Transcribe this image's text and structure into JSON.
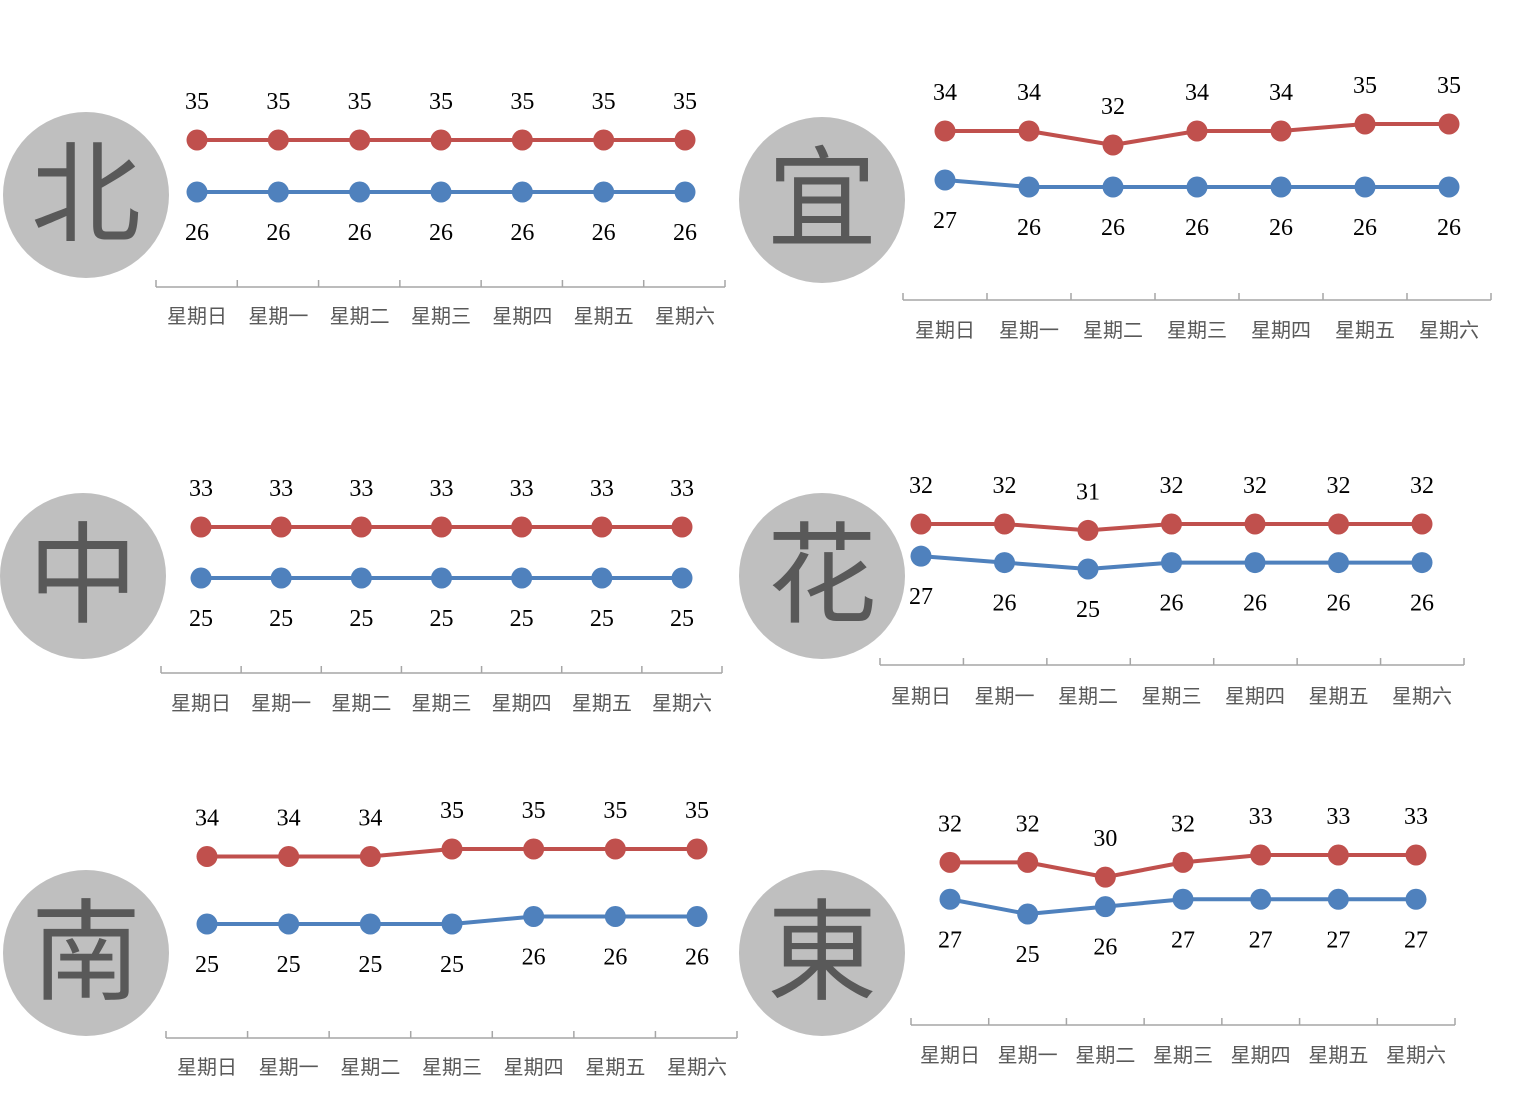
{
  "colors": {
    "high": "#c0504d",
    "low": "#4f81bd",
    "badge_bg": "#bfbfbf",
    "badge_text": "#595959",
    "axis": "#a6a6a6"
  },
  "chart_data": [
    {
      "type": "line",
      "region": "北",
      "categories": [
        "星期日",
        "星期一",
        "星期二",
        "星期三",
        "星期四",
        "星期五",
        "星期六"
      ],
      "series": [
        {
          "values": [
            35,
            35,
            35,
            35,
            35,
            35,
            35
          ]
        },
        {
          "values": [
            26,
            26,
            26,
            26,
            26,
            26,
            26
          ]
        }
      ]
    },
    {
      "type": "line",
      "region": "宜",
      "categories": [
        "星期日",
        "星期一",
        "星期二",
        "星期三",
        "星期四",
        "星期五",
        "星期六"
      ],
      "series": [
        {
          "values": [
            34,
            34,
            32,
            34,
            34,
            35,
            35
          ]
        },
        {
          "values": [
            27,
            26,
            26,
            26,
            26,
            26,
            26
          ]
        }
      ]
    },
    {
      "type": "line",
      "region": "中",
      "categories": [
        "星期日",
        "星期一",
        "星期二",
        "星期三",
        "星期四",
        "星期五",
        "星期六"
      ],
      "series": [
        {
          "values": [
            33,
            33,
            33,
            33,
            33,
            33,
            33
          ]
        },
        {
          "values": [
            25,
            25,
            25,
            25,
            25,
            25,
            25
          ]
        }
      ]
    },
    {
      "type": "line",
      "region": "花",
      "categories": [
        "星期日",
        "星期一",
        "星期二",
        "星期三",
        "星期四",
        "星期五",
        "星期六"
      ],
      "series": [
        {
          "values": [
            32,
            32,
            31,
            32,
            32,
            32,
            32
          ]
        },
        {
          "values": [
            27,
            26,
            25,
            26,
            26,
            26,
            26
          ]
        }
      ]
    },
    {
      "type": "line",
      "region": "南",
      "categories": [
        "星期日",
        "星期一",
        "星期二",
        "星期三",
        "星期四",
        "星期五",
        "星期六"
      ],
      "series": [
        {
          "values": [
            34,
            34,
            34,
            35,
            35,
            35,
            35
          ]
        },
        {
          "values": [
            25,
            25,
            25,
            25,
            26,
            26,
            26
          ]
        }
      ]
    },
    {
      "type": "line",
      "region": "東",
      "categories": [
        "星期日",
        "星期一",
        "星期二",
        "星期三",
        "星期四",
        "星期五",
        "星期六"
      ],
      "series": [
        {
          "values": [
            32,
            32,
            30,
            32,
            33,
            33,
            33
          ]
        },
        {
          "values": [
            27,
            25,
            26,
            27,
            27,
            27,
            27
          ]
        }
      ]
    }
  ]
}
